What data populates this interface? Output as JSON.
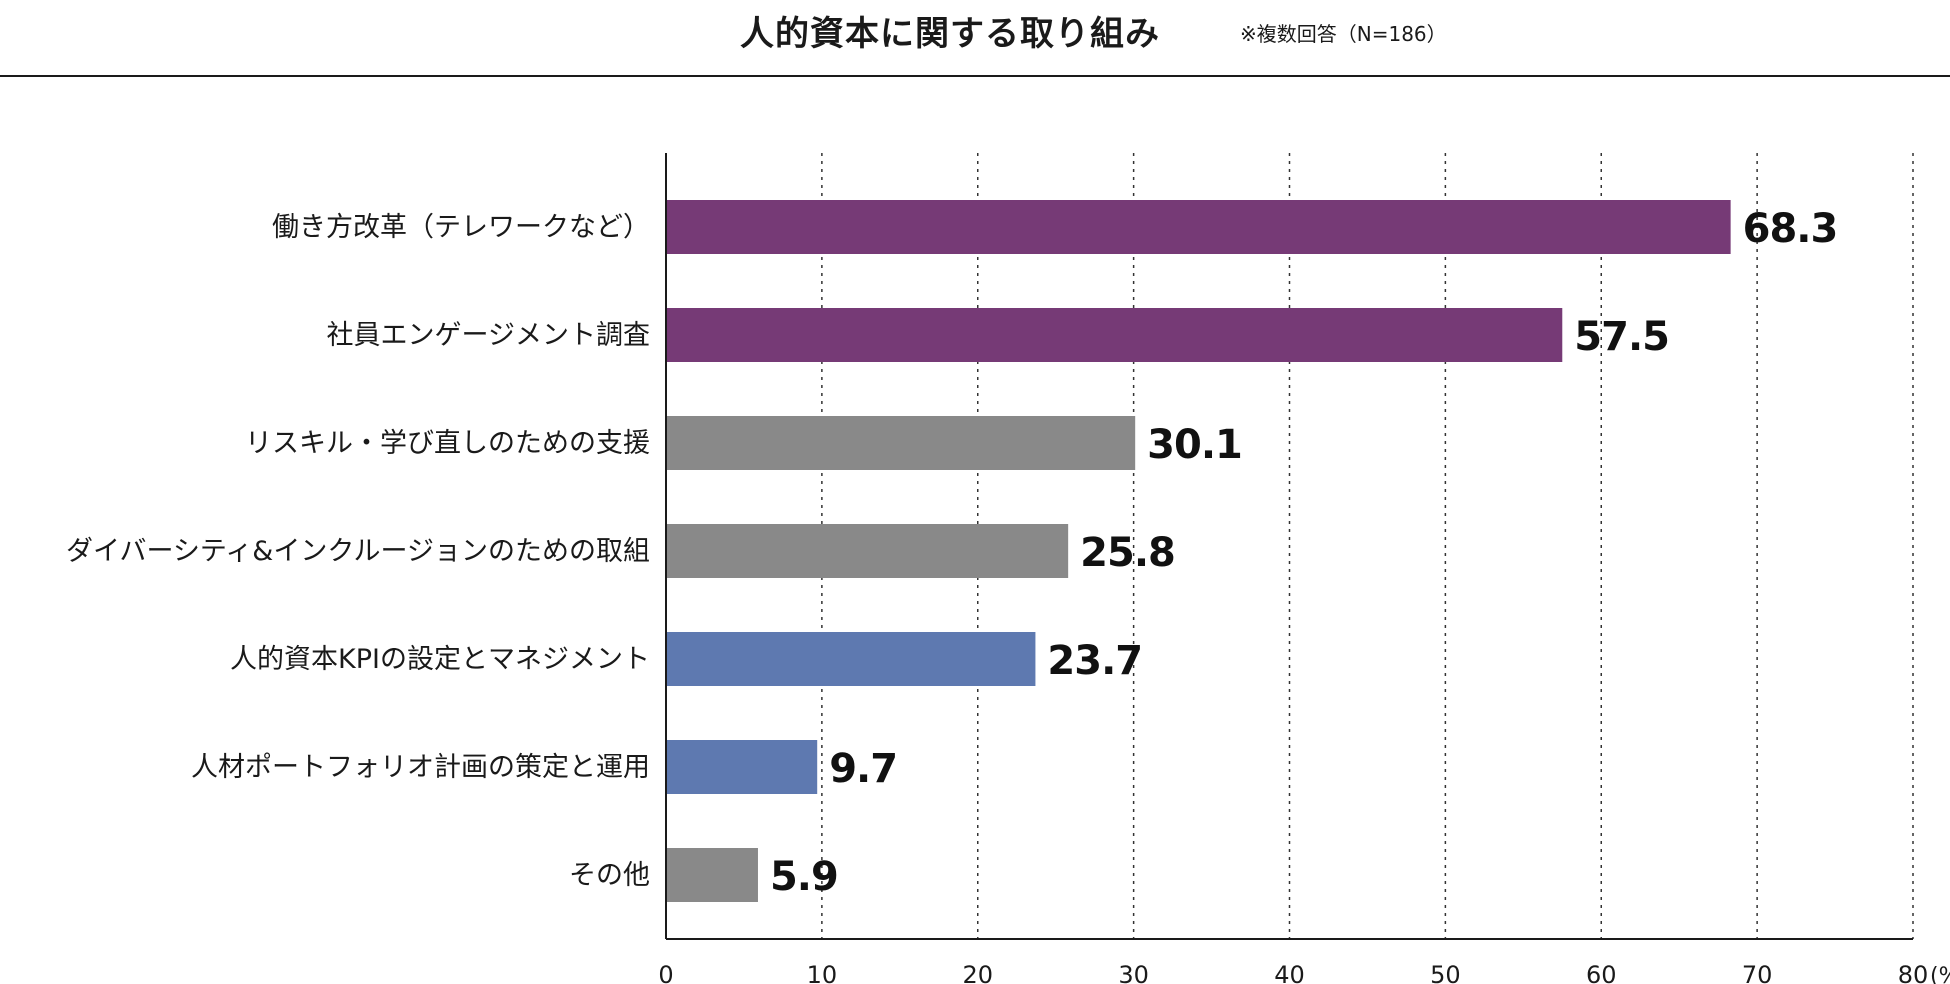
{
  "title": "人的資本に関する取り組み",
  "note": "※複数回答（N=186）",
  "chart_data": {
    "type": "bar",
    "orientation": "horizontal",
    "title": "人的資本に関する取り組み",
    "xlabel": "",
    "ylabel": "",
    "unit": "(%)",
    "xlim": [
      0,
      80
    ],
    "ticks": [
      0,
      10,
      20,
      30,
      40,
      50,
      60,
      70,
      80
    ],
    "grid": "vertical dotted",
    "categories": [
      "働き方改革（テレワークなど）",
      "社員エンゲージメント調査",
      "リスキル・学び直しのための支援",
      "ダイバーシティ&インクルージョンのための取組",
      "人的資本KPIの設定とマネジメント",
      "人材ポートフォリオ計画の策定と運用",
      "その他"
    ],
    "values": [
      68.3,
      57.5,
      30.1,
      25.8,
      23.7,
      9.7,
      5.9
    ],
    "value_labels": [
      "68.3",
      "57.5",
      "30.1",
      "25.8",
      "23.7",
      "9.7",
      "5.9"
    ],
    "colors": [
      "#763A76",
      "#763A76",
      "#898989",
      "#898989",
      "#5E79B0",
      "#5E79B0",
      "#898989"
    ]
  }
}
